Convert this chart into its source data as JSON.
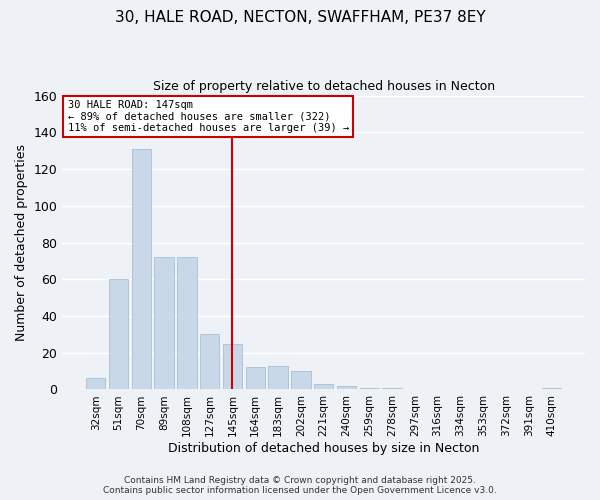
{
  "title1": "30, HALE ROAD, NECTON, SWAFFHAM, PE37 8EY",
  "title2": "Size of property relative to detached houses in Necton",
  "xlabel": "Distribution of detached houses by size in Necton",
  "ylabel": "Number of detached properties",
  "bar_color": "#c8d8e8",
  "bar_edge_color": "#a0b8cc",
  "categories": [
    "32sqm",
    "51sqm",
    "70sqm",
    "89sqm",
    "108sqm",
    "127sqm",
    "145sqm",
    "164sqm",
    "183sqm",
    "202sqm",
    "221sqm",
    "240sqm",
    "259sqm",
    "278sqm",
    "297sqm",
    "316sqm",
    "334sqm",
    "353sqm",
    "372sqm",
    "391sqm",
    "410sqm"
  ],
  "values": [
    6,
    60,
    131,
    72,
    72,
    30,
    25,
    12,
    13,
    10,
    3,
    2,
    1,
    1,
    0,
    0,
    0,
    0,
    0,
    0,
    1
  ],
  "ylim": [
    0,
    160
  ],
  "yticks": [
    0,
    20,
    40,
    60,
    80,
    100,
    120,
    140,
    160
  ],
  "annotation_title": "30 HALE ROAD: 147sqm",
  "annotation_line1": "← 89% of detached houses are smaller (322)",
  "annotation_line2": "11% of semi-detached houses are larger (39) →",
  "vline_color": "#cc0000",
  "annotation_box_edge": "#cc0000",
  "footer1": "Contains HM Land Registry data © Crown copyright and database right 2025.",
  "footer2": "Contains public sector information licensed under the Open Government Licence v3.0.",
  "bg_color": "#eef2f7",
  "grid_color": "#ffffff"
}
